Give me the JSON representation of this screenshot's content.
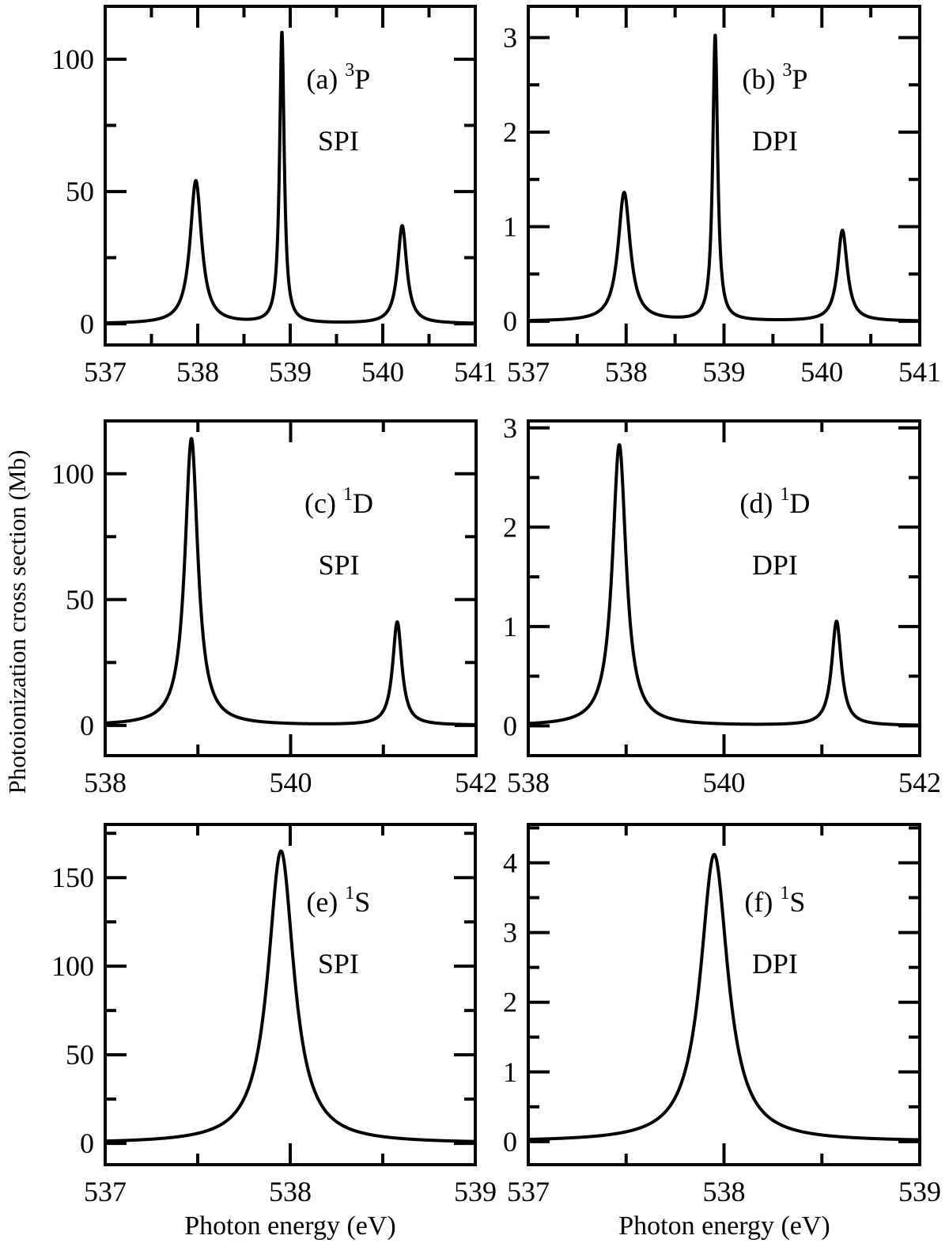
{
  "ylabel": "Photoionization cross section (Mb)",
  "xlabel": "Photon energy (eV)",
  "chart_data": [
    {
      "type": "line",
      "panel": "a",
      "label": "(a)",
      "term_sup": "3",
      "term": "P",
      "mode": "SPI",
      "xlim": [
        537,
        541
      ],
      "xticks": [
        537,
        538,
        539,
        540,
        541
      ],
      "xminor": 0.5,
      "ylim": [
        -8,
        120
      ],
      "yticks": [
        0,
        50,
        100
      ],
      "yminor": 25,
      "peaks": [
        {
          "x": 537.98,
          "y": 54,
          "fwhm": 0.15
        },
        {
          "x": 538.91,
          "y": 110,
          "fwhm": 0.06
        },
        {
          "x": 540.21,
          "y": 37,
          "fwhm": 0.12
        }
      ]
    },
    {
      "type": "line",
      "panel": "b",
      "label": "(b)",
      "term_sup": "3",
      "term": "P",
      "mode": "DPI",
      "xlim": [
        537,
        541
      ],
      "xticks": [
        537,
        538,
        539,
        540,
        541
      ],
      "xminor": 0.5,
      "ylim": [
        -0.25,
        3.33
      ],
      "yticks": [
        0,
        1,
        2,
        3
      ],
      "yminor": 0.5,
      "peaks": [
        {
          "x": 537.98,
          "y": 1.36,
          "fwhm": 0.15
        },
        {
          "x": 538.91,
          "y": 3.02,
          "fwhm": 0.06
        },
        {
          "x": 540.21,
          "y": 0.96,
          "fwhm": 0.12
        }
      ]
    },
    {
      "type": "line",
      "panel": "c",
      "label": "(c)",
      "term_sup": "1",
      "term": "D",
      "mode": "SPI",
      "xlim": [
        538,
        542
      ],
      "xticks": [
        538,
        540,
        542
      ],
      "xminor": 1,
      "ylim": [
        -12,
        121
      ],
      "yticks": [
        0,
        50,
        100
      ],
      "yminor": 25,
      "peaks": [
        {
          "x": 538.93,
          "y": 114,
          "fwhm": 0.17
        },
        {
          "x": 541.15,
          "y": 41,
          "fwhm": 0.12
        }
      ]
    },
    {
      "type": "line",
      "panel": "d",
      "label": "(d)",
      "term_sup": "1",
      "term": "D",
      "mode": "DPI",
      "xlim": [
        538,
        542
      ],
      "xticks": [
        538,
        540,
        542
      ],
      "xminor": 1,
      "ylim": [
        -0.3,
        3.07
      ],
      "yticks": [
        0,
        1,
        2,
        3
      ],
      "yminor": 0.5,
      "peaks": [
        {
          "x": 538.93,
          "y": 2.83,
          "fwhm": 0.17
        },
        {
          "x": 541.15,
          "y": 1.05,
          "fwhm": 0.12
        }
      ]
    },
    {
      "type": "line",
      "panel": "e",
      "label": "(e)",
      "term_sup": "1",
      "term": "S",
      "mode": "SPI",
      "xlim": [
        537,
        539
      ],
      "xticks": [
        537,
        538,
        539
      ],
      "xminor": 0.5,
      "ylim": [
        -12,
        180
      ],
      "yticks": [
        0,
        50,
        100,
        150
      ],
      "yminor": 25,
      "peaks": [
        {
          "x": 537.95,
          "y": 165,
          "fwhm": 0.17
        }
      ]
    },
    {
      "type": "line",
      "panel": "f",
      "label": "(f)",
      "term_sup": "1",
      "term": "S",
      "mode": "DPI",
      "xlim": [
        537,
        539
      ],
      "xticks": [
        537,
        538,
        539
      ],
      "xminor": 0.5,
      "ylim": [
        -0.33,
        4.55
      ],
      "yticks": [
        0,
        1,
        2,
        3,
        4
      ],
      "yminor": 0.5,
      "peaks": [
        {
          "x": 537.95,
          "y": 4.12,
          "fwhm": 0.17
        }
      ]
    }
  ]
}
